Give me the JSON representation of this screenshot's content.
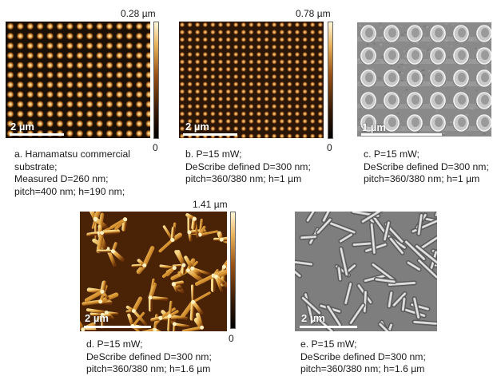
{
  "panels": {
    "a": {
      "scale_label": "2 µm",
      "colorbar_max": "0.28 µm",
      "colorbar_min": "0",
      "caption": [
        "a. Hamamatsu commercial",
        "substrate;",
        "Measured D=260 nm;",
        "pitch=400 nm; h=190 nm;"
      ]
    },
    "b": {
      "scale_label": "2 µm",
      "colorbar_max": "0.78 µm",
      "colorbar_min": "0",
      "caption": [
        "b. P=15 mW;",
        "DeScribe defined D=300 nm;",
        "pitch=360/380 nm; h=1 µm"
      ]
    },
    "c": {
      "scale_label": "1 µm",
      "caption": [
        "c. P=15 mW;",
        "DeScribe defined D=300 nm;",
        "pitch=360/380 nm; h=1 µm"
      ]
    },
    "d": {
      "scale_label": "2 µm",
      "colorbar_max": "1.41 µm",
      "colorbar_min": "0",
      "caption": [
        "d. P=15 mW;",
        "DeScribe defined D=300 nm;",
        "pitch=360/380 nm; h=1.6 µm"
      ]
    },
    "e": {
      "scale_label": "2 µm",
      "caption": [
        "e. P=15 mW;",
        "DeScribe defined D=300 nm;",
        "pitch=360/380 nm; h=1.6 µm"
      ]
    }
  },
  "colors": {
    "afm_dark": "#1a0f05",
    "afm_mid": "#8b4a14",
    "afm_bright": "#f3d27a",
    "sem_bg": "#8a8a8a",
    "sem_highlight": "#e8e8e8"
  }
}
